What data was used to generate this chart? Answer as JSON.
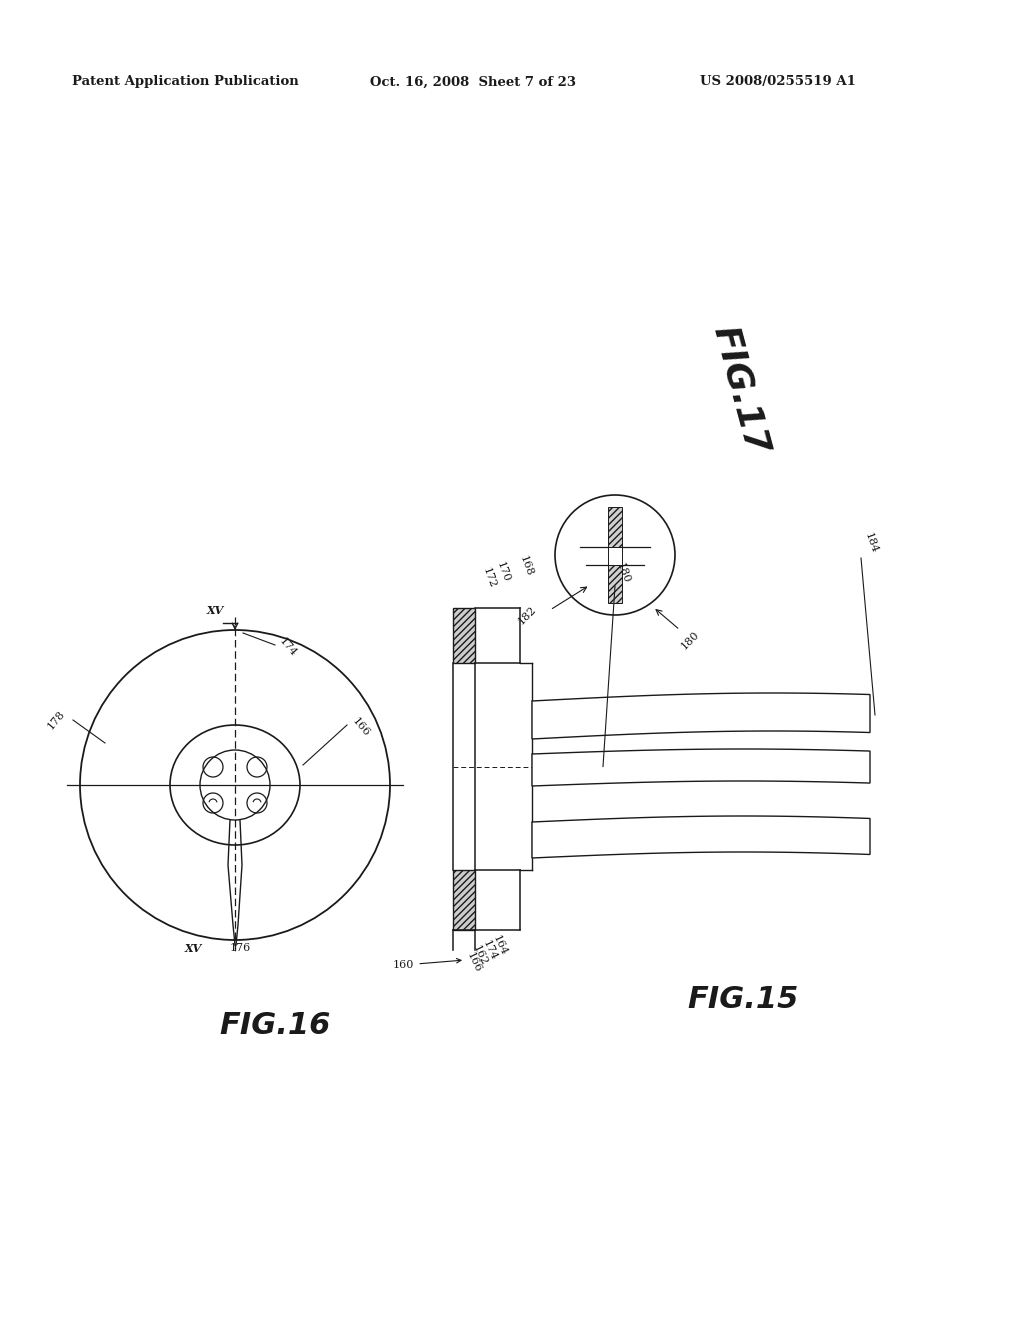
{
  "bg_color": "#ffffff",
  "header_text": "Patent Application Publication",
  "header_date": "Oct. 16, 2008  Sheet 7 of 23",
  "header_patent": "US 2008/0255519 A1",
  "fig15_label": "FIG.15",
  "fig16_label": "FIG.16",
  "fig17_label": "FIG.17",
  "line_color": "#1a1a1a"
}
